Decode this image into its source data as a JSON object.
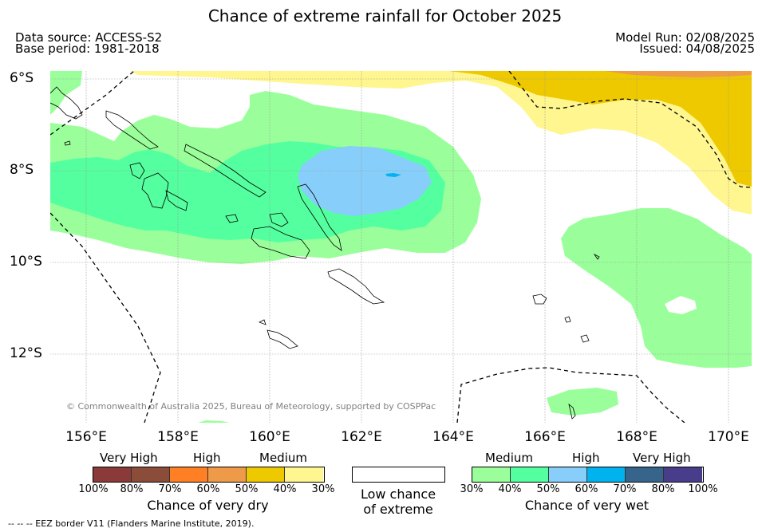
{
  "title": "Chance of extreme rainfall for October 2025",
  "source": {
    "data_source": "Data source: ACCESS-S2",
    "base_period": "Base period: 1981-2018",
    "model_run": "Model Run: 02/08/2025",
    "issued": "Issued: 04/08/2025"
  },
  "map": {
    "lat_labels": [
      "6°S",
      "8°S",
      "10°S",
      "12°S"
    ],
    "lon_labels": [
      "156°E",
      "158°E",
      "160°E",
      "162°E",
      "164°E",
      "166°E",
      "168°E",
      "170°E"
    ],
    "copyright": "© Commonwealth of Australia 2025, Bureau of Meteorology, supported by COSPPac",
    "colors": {
      "dry_30_40": "#fff68f",
      "dry_40_50": "#eec900",
      "dry_50_60": "#ee9a49",
      "wet_30_40": "#9aff9a",
      "wet_40_50": "#54ff9f",
      "wet_50_60": "#87cefa",
      "wet_60_70": "#00b2ee"
    }
  },
  "legend": {
    "dry": {
      "categories": [
        "Very High",
        "High",
        "Medium"
      ],
      "colors": [
        "#8b3a3a",
        "#8b4c39",
        "#ff7f24",
        "#ee9a49",
        "#eec900",
        "#fff68f"
      ],
      "ticks": [
        "100%",
        "80%",
        "70%",
        "60%",
        "50%",
        "40%",
        "30%"
      ],
      "title": "Chance of very dry"
    },
    "low": {
      "line1": "Low chance",
      "line2": "of extreme"
    },
    "wet": {
      "categories": [
        "Medium",
        "High",
        "Very High"
      ],
      "colors": [
        "#9aff9a",
        "#54ff9f",
        "#87cefa",
        "#00b2ee",
        "#36648b",
        "#483d8b"
      ],
      "ticks": [
        "30%",
        "40%",
        "50%",
        "60%",
        "70%",
        "80%",
        "100%"
      ],
      "title": "Chance of very wet"
    }
  },
  "footnote": "-- -- -- EEZ border V11 (Flanders Marine Institute, 2019)."
}
